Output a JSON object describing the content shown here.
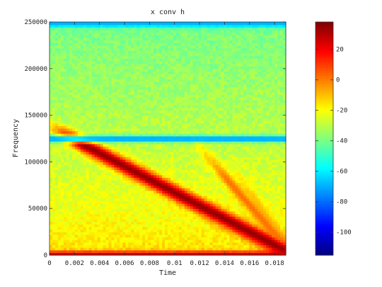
{
  "chart_data": {
    "type": "heatmap",
    "title": "x conv h",
    "xlabel": "Time",
    "ylabel": "Frequency",
    "xlim": [
      0,
      0.0189
    ],
    "ylim": [
      0,
      250000
    ],
    "xticks": [
      "0",
      "0.002",
      "0.004",
      "0.006",
      "0.008",
      "0.01",
      "0.012",
      "0.014",
      "0.016",
      "0.018"
    ],
    "xtick_values": [
      0,
      0.002,
      0.004,
      0.006,
      0.008,
      0.01,
      0.012,
      0.014,
      0.016,
      0.018
    ],
    "yticks": [
      "0",
      "50000",
      "100000",
      "150000",
      "200000",
      "250000"
    ],
    "ytick_values": [
      0,
      50000,
      100000,
      150000,
      200000,
      250000
    ],
    "colorbar": {
      "range": [
        -115,
        38
      ],
      "ticks": [
        "20",
        "0",
        "-20",
        "-40",
        "-60",
        "-80",
        "-100"
      ],
      "tick_values": [
        20,
        0,
        -20,
        -40,
        -60,
        -80,
        -100
      ],
      "colormap": "jet"
    },
    "features": [
      {
        "kind": "chirp",
        "t0": 0.0,
        "f0": 138000,
        "t1": 0.0189,
        "f1": 5000,
        "level": 35
      },
      {
        "kind": "chirp",
        "t0": 0.0118,
        "f0": 118000,
        "t1": 0.0189,
        "f1": 10000,
        "level": 2
      },
      {
        "kind": "chirp",
        "t0": 0.0145,
        "f0": 95000,
        "t1": 0.0189,
        "f1": 12000,
        "level": -8
      },
      {
        "kind": "band",
        "f": 125000,
        "level": -75
      },
      {
        "kind": "band",
        "f": 248000,
        "level": -70
      },
      {
        "kind": "band",
        "f": 1500,
        "level": 25
      }
    ]
  }
}
